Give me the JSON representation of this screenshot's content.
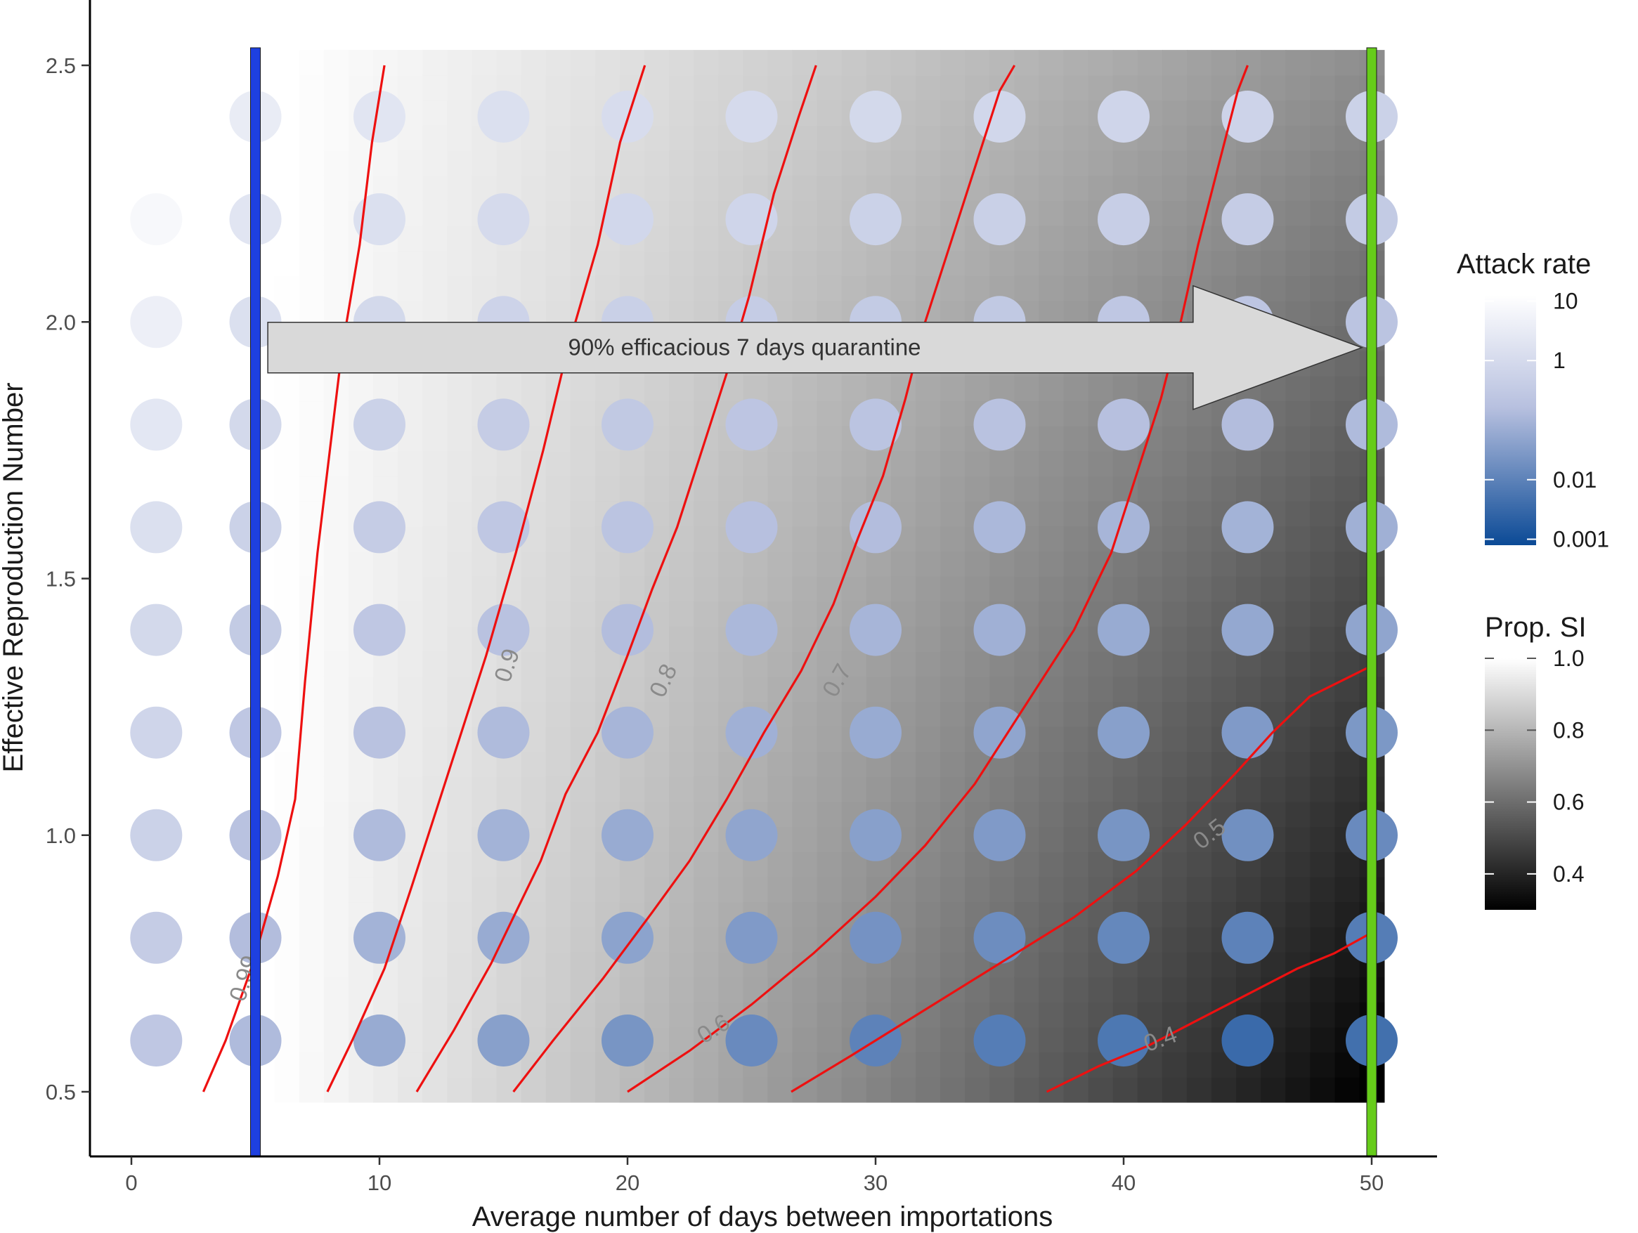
{
  "chart_data": {
    "type": "heatmap",
    "title": "",
    "xlabel": "Average number of days between importations",
    "ylabel": "Effective Reproduction Number",
    "xlim": [
      -1.6,
      52.5
    ],
    "ylim": [
      0.38,
      2.62
    ],
    "x_ticks": [
      0,
      10,
      20,
      30,
      40,
      50
    ],
    "x_tick_labels": [
      "0",
      "10",
      "20",
      "30",
      "40",
      "50"
    ],
    "y_ticks": [
      0.5,
      1.0,
      1.5,
      2.0,
      2.5
    ],
    "y_tick_labels": [
      "0.5",
      "1.0",
      "1.5",
      "2.0",
      "2.5"
    ],
    "grid": false,
    "background": {
      "name": "Prop. SI",
      "x_range": [
        0.8,
        50.5
      ],
      "y_range": [
        0.48,
        2.53
      ],
      "description_values": "proportion SI decreases with days between importations and with R",
      "color_low": "#000000",
      "color_high": "#ffffff"
    },
    "points": {
      "name": "Attack rate",
      "x": [
        1,
        5,
        10,
        15,
        20,
        25,
        30,
        35,
        40,
        45,
        50
      ],
      "y": [
        0.6,
        0.8,
        1.0,
        1.2,
        1.4,
        1.6,
        1.8,
        2.0,
        2.2,
        2.4
      ],
      "log10_values": [
        [
          -0.6,
          -0.9,
          -1.2,
          -1.4,
          -1.6,
          -1.8,
          -1.95,
          -2.05,
          -2.15,
          -2.4,
          -2.3
        ],
        [
          -0.45,
          -0.85,
          -1.05,
          -1.2,
          -1.35,
          -1.5,
          -1.65,
          -1.75,
          -1.85,
          -1.95,
          -2.05
        ],
        [
          -0.3,
          -0.75,
          -0.9,
          -1.05,
          -1.2,
          -1.3,
          -1.4,
          -1.5,
          -1.6,
          -1.7,
          -1.8
        ],
        [
          -0.2,
          -0.6,
          -0.75,
          -0.9,
          -1.0,
          -1.1,
          -1.2,
          -1.3,
          -1.4,
          -1.5,
          -1.55
        ],
        [
          -0.1,
          -0.5,
          -0.6,
          -0.75,
          -0.85,
          -0.95,
          -1.0,
          -1.1,
          -1.2,
          -1.25,
          -1.3
        ],
        [
          0.1,
          -0.3,
          -0.45,
          -0.6,
          -0.7,
          -0.8,
          -0.85,
          -0.95,
          -1.0,
          -1.05,
          -1.1
        ],
        [
          0.3,
          -0.1,
          -0.3,
          -0.45,
          -0.55,
          -0.65,
          -0.7,
          -0.75,
          -0.8,
          -0.85,
          -0.9
        ],
        [
          0.55,
          0.1,
          -0.1,
          -0.25,
          -0.35,
          -0.45,
          -0.5,
          -0.55,
          -0.6,
          -0.65,
          -0.7
        ],
        [
          0.8,
          0.25,
          0.1,
          -0.05,
          -0.15,
          -0.2,
          -0.3,
          -0.35,
          -0.4,
          -0.45,
          -0.5
        ],
        [
          1.0,
          0.45,
          0.25,
          0.1,
          0.0,
          -0.05,
          -0.1,
          -0.15,
          -0.2,
          -0.25,
          -0.3
        ]
      ]
    },
    "contours": [
      {
        "label": "0.99",
        "label_pos": [
          4.6,
          0.72
        ],
        "label_angle": -72,
        "points": [
          [
            2.9,
            0.5
          ],
          [
            3.8,
            0.6
          ],
          [
            4.9,
            0.75
          ],
          [
            5.9,
            0.92
          ],
          [
            6.6,
            1.07
          ],
          [
            7.0,
            1.3
          ],
          [
            7.5,
            1.55
          ],
          [
            8.0,
            1.75
          ],
          [
            8.5,
            1.95
          ],
          [
            9.2,
            2.15
          ],
          [
            9.7,
            2.35
          ],
          [
            10.2,
            2.5
          ]
        ]
      },
      {
        "label": "0.9",
        "label_pos": [
          15.2,
          1.33
        ],
        "label_angle": -72,
        "points": [
          [
            7.9,
            0.5
          ],
          [
            8.9,
            0.6
          ],
          [
            10.2,
            0.74
          ],
          [
            11.3,
            0.9
          ],
          [
            12.3,
            1.05
          ],
          [
            13.3,
            1.2
          ],
          [
            14.3,
            1.35
          ],
          [
            15.5,
            1.55
          ],
          [
            16.6,
            1.75
          ],
          [
            17.6,
            1.95
          ],
          [
            18.8,
            2.15
          ],
          [
            19.7,
            2.35
          ],
          [
            20.7,
            2.5
          ]
        ]
      },
      {
        "label": "0.8",
        "label_pos": [
          21.5,
          1.3
        ],
        "label_angle": -65,
        "points": [
          [
            11.5,
            0.5
          ],
          [
            13.0,
            0.62
          ],
          [
            14.5,
            0.75
          ],
          [
            15.5,
            0.85
          ],
          [
            16.5,
            0.95
          ],
          [
            17.5,
            1.08
          ],
          [
            18.8,
            1.2
          ],
          [
            20.0,
            1.35
          ],
          [
            21.0,
            1.48
          ],
          [
            22.0,
            1.6
          ],
          [
            23.0,
            1.75
          ],
          [
            24.0,
            1.9
          ],
          [
            24.9,
            2.05
          ],
          [
            25.9,
            2.25
          ],
          [
            26.9,
            2.4
          ],
          [
            27.6,
            2.5
          ]
        ]
      },
      {
        "label": "0.7",
        "label_pos": [
          28.5,
          1.3
        ],
        "label_angle": -60,
        "points": [
          [
            15.4,
            0.5
          ],
          [
            17.0,
            0.6
          ],
          [
            19.0,
            0.72
          ],
          [
            21.0,
            0.85
          ],
          [
            22.5,
            0.95
          ],
          [
            24.0,
            1.07
          ],
          [
            25.5,
            1.2
          ],
          [
            27.0,
            1.32
          ],
          [
            28.3,
            1.45
          ],
          [
            29.3,
            1.58
          ],
          [
            30.3,
            1.7
          ],
          [
            31.2,
            1.85
          ],
          [
            32.0,
            2.0
          ],
          [
            33.0,
            2.15
          ],
          [
            34.0,
            2.3
          ],
          [
            35.0,
            2.45
          ],
          [
            35.6,
            2.5
          ]
        ]
      },
      {
        "label": "0.6",
        "label_pos": [
          23.5,
          0.62
        ],
        "label_angle": -32,
        "points": [
          [
            20.0,
            0.5
          ],
          [
            22.5,
            0.58
          ],
          [
            25.0,
            0.67
          ],
          [
            27.5,
            0.77
          ],
          [
            30.0,
            0.88
          ],
          [
            32.0,
            0.98
          ],
          [
            34.0,
            1.1
          ],
          [
            36.0,
            1.25
          ],
          [
            38.0,
            1.4
          ],
          [
            39.5,
            1.55
          ],
          [
            40.5,
            1.7
          ],
          [
            41.5,
            1.85
          ],
          [
            42.3,
            2.0
          ],
          [
            43.0,
            2.15
          ],
          [
            43.8,
            2.3
          ],
          [
            44.6,
            2.45
          ],
          [
            45.0,
            2.5
          ]
        ]
      },
      {
        "label": "0.5",
        "label_pos": [
          43.5,
          1.0
        ],
        "label_angle": -38,
        "points": [
          [
            26.6,
            0.5
          ],
          [
            29.0,
            0.57
          ],
          [
            32.0,
            0.66
          ],
          [
            35.0,
            0.75
          ],
          [
            38.0,
            0.84
          ],
          [
            40.5,
            0.93
          ],
          [
            42.5,
            1.02
          ],
          [
            44.5,
            1.12
          ],
          [
            46.0,
            1.2
          ],
          [
            47.5,
            1.27
          ],
          [
            50.0,
            1.33
          ]
        ]
      },
      {
        "label": "0.4",
        "label_pos": [
          41.5,
          0.6
        ],
        "label_angle": -20,
        "points": [
          [
            36.9,
            0.5
          ],
          [
            39.0,
            0.55
          ],
          [
            41.0,
            0.59
          ],
          [
            43.0,
            0.64
          ],
          [
            45.0,
            0.69
          ],
          [
            47.0,
            0.74
          ],
          [
            48.5,
            0.77
          ],
          [
            50.0,
            0.81
          ]
        ]
      }
    ],
    "vlines": [
      {
        "x": 5,
        "color": "#1e40e0"
      },
      {
        "x": 50,
        "color": "#66cc1a"
      }
    ],
    "annotation": {
      "text": "90% efficacious 7 days quarantine",
      "from_x": 5.5,
      "to_x": 49.6,
      "y": 1.95
    },
    "legends": [
      {
        "title": "Attack rate",
        "scale": "log10",
        "labels": [
          "10",
          "1",
          "0.01",
          "0.001"
        ],
        "values": [
          10,
          1,
          0.01,
          0.001
        ],
        "color_low": "#0b4a96",
        "color_mid": "#b7c0df",
        "color_high": "#ffffff"
      },
      {
        "title": "Prop. SI",
        "labels": [
          "1.0",
          "0.8",
          "0.6",
          "0.4"
        ],
        "values": [
          1.0,
          0.8,
          0.6,
          0.4
        ],
        "range": [
          0.3,
          1.0
        ],
        "color_low": "#000000",
        "color_high": "#ffffff"
      }
    ],
    "colors": {
      "contour": "#ee1010",
      "axis": "#000000",
      "tick_text": "#4d4d4d"
    }
  }
}
